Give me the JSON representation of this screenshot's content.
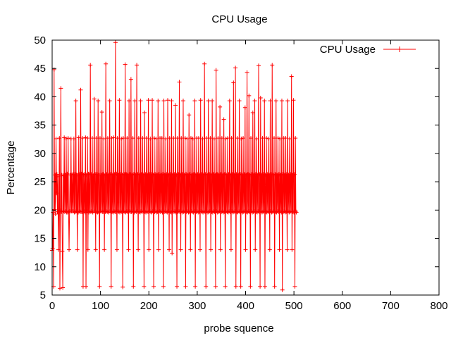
{
  "chart_data": {
    "type": "line",
    "title": "CPU Usage",
    "xlabel": "probe squence",
    "ylabel": "Percentage",
    "xlim": [
      0,
      800
    ],
    "ylim": [
      5,
      50
    ],
    "x_ticks": [
      0,
      100,
      200,
      300,
      400,
      500,
      600,
      700,
      800
    ],
    "y_ticks": [
      5,
      10,
      15,
      20,
      25,
      30,
      35,
      40,
      45,
      50
    ],
    "grid": false,
    "legend_position": "top-right",
    "series": [
      {
        "name": "CPU Usage",
        "color": "#ff0000",
        "x_start": 0,
        "x_step": 1,
        "values": [
          12.9,
          13.2,
          19.6,
          6.5,
          44.8,
          20.1,
          26.2,
          19.3,
          32.6,
          23.0,
          26.3,
          19.7,
          26.0,
          13.0,
          19.7,
          32.7,
          6.2,
          19.9,
          41.5,
          19.7,
          26.2,
          12.7,
          6.3,
          26.1,
          19.8,
          32.8,
          19.7,
          26.2,
          19.8,
          32.6,
          19.6,
          26.4,
          19.6,
          32.7,
          19.7,
          13.0,
          19.8,
          26.2,
          19.8,
          32.6,
          19.8,
          26.2,
          19.8,
          26.3,
          19.8,
          32.6,
          19.6,
          26.3,
          19.7,
          39.3,
          19.8,
          26.2,
          13.0,
          26.2,
          19.6,
          32.8,
          19.8,
          26.3,
          19.7,
          41.2,
          19.7,
          26.4,
          19.7,
          32.7,
          6.5,
          26.2,
          19.8,
          26.3,
          19.6,
          32.8,
          6.5,
          26.2,
          19.8,
          32.7,
          13.0,
          26.4,
          19.6,
          26.3,
          19.8,
          45.6,
          19.7,
          26.3,
          19.8,
          32.7,
          19.6,
          26.1,
          19.8,
          39.6,
          19.8,
          26.3,
          13.0,
          32.7,
          19.7,
          26.3,
          19.6,
          39.3,
          19.7,
          26.2,
          6.5,
          32.7,
          19.8,
          26.2,
          19.8,
          37.3,
          19.7,
          26.3,
          19.7,
          32.6,
          13.0,
          26.1,
          19.7,
          45.8,
          19.8,
          26.3,
          19.7,
          32.7,
          19.6,
          26.2,
          19.8,
          39.3,
          19.8,
          26.3,
          6.5,
          32.7,
          19.7,
          26.2,
          19.6,
          32.8,
          19.8,
          26.3,
          19.7,
          49.6,
          19.7,
          26.4,
          13.0,
          32.7,
          19.8,
          26.2,
          19.7,
          39.4,
          19.6,
          26.3,
          19.8,
          32.6,
          19.7,
          26.2,
          6.4,
          32.7,
          19.8,
          26.3,
          19.7,
          45.7,
          19.6,
          26.3,
          19.8,
          32.7,
          19.7,
          26.2,
          13.0,
          39.3,
          19.8,
          26.3,
          19.7,
          43.1,
          19.7,
          26.2,
          19.8,
          32.7,
          6.5,
          26.3,
          19.6,
          39.3,
          19.8,
          26.2,
          19.7,
          45.6,
          19.8,
          26.3,
          13.0,
          32.7,
          19.7,
          26.2,
          19.6,
          39.3,
          19.8,
          26.3,
          19.7,
          32.7,
          19.8,
          26.2,
          6.5,
          37.2,
          19.7,
          26.3,
          19.6,
          32.7,
          19.8,
          26.2,
          19.7,
          39.4,
          13.0,
          26.3,
          19.8,
          32.6,
          19.7,
          26.3,
          19.6,
          39.4,
          19.8,
          26.2,
          6.5,
          32.7,
          19.7,
          26.3,
          19.8,
          32.6,
          19.6,
          26.2,
          19.7,
          39.3,
          13.0,
          26.3,
          19.8,
          32.7,
          19.7,
          26.2,
          19.8,
          32.7,
          19.6,
          26.3,
          6.5,
          39.3,
          19.7,
          26.2,
          19.8,
          32.6,
          19.7,
          26.3,
          19.6,
          39.4,
          19.8,
          26.2,
          13.0,
          32.7,
          19.7,
          26.3,
          19.6,
          39.3,
          12.4,
          26.2,
          19.8,
          32.7,
          19.7,
          26.3,
          19.8,
          38.5,
          19.6,
          26.2,
          6.5,
          32.7,
          19.7,
          26.3,
          19.8,
          42.6,
          19.7,
          26.2,
          13.0,
          32.7,
          19.8,
          26.3,
          19.6,
          39.3,
          19.7,
          26.2,
          19.8,
          32.7,
          6.5,
          26.3,
          19.7,
          32.6,
          19.8,
          26.2,
          19.6,
          36.8,
          19.7,
          26.3,
          13.0,
          32.7,
          19.8,
          26.2,
          19.7,
          32.6,
          19.6,
          26.3,
          19.8,
          39.3,
          6.5,
          26.2,
          19.7,
          32.7,
          19.8,
          26.3,
          19.6,
          32.7,
          19.7,
          26.2,
          13.0,
          39.4,
          19.8,
          26.3,
          19.7,
          32.6,
          19.6,
          26.2,
          19.8,
          45.8,
          19.7,
          26.3,
          6.5,
          32.7,
          19.8,
          26.2,
          19.6,
          39.3,
          19.7,
          26.3,
          19.8,
          32.7,
          13.0,
          26.2,
          19.7,
          39.3,
          19.6,
          26.3,
          19.8,
          32.6,
          19.7,
          26.2,
          6.5,
          44.7,
          19.8,
          26.3,
          19.6,
          32.7,
          19.7,
          26.2,
          19.8,
          38.2,
          13.0,
          26.3,
          19.7,
          32.7,
          19.8,
          26.2,
          19.6,
          36.0,
          19.7,
          26.3,
          6.5,
          32.6,
          19.8,
          26.2,
          19.7,
          32.7,
          19.6,
          26.3,
          19.8,
          39.3,
          19.7,
          26.2,
          13.0,
          32.7,
          19.8,
          26.3,
          19.6,
          42.5,
          19.7,
          26.2,
          19.8,
          45.1,
          6.5,
          26.3,
          19.7,
          32.7,
          19.6,
          26.2,
          19.8,
          39.3,
          19.7,
          26.3,
          6.5,
          32.6,
          19.8,
          26.2,
          19.6,
          32.7,
          19.7,
          26.3,
          19.8,
          38.1,
          13.0,
          26.2,
          19.7,
          44.3,
          19.6,
          26.3,
          19.8,
          40.2,
          19.7,
          26.2,
          6.5,
          32.7,
          19.8,
          26.3,
          19.6,
          37.2,
          19.7,
          26.2,
          19.8,
          39.3,
          13.0,
          26.3,
          19.7,
          32.6,
          19.6,
          26.2,
          19.8,
          45.5,
          19.7,
          26.3,
          6.5,
          39.8,
          19.8,
          26.2,
          19.6,
          32.7,
          19.7,
          26.3,
          19.8,
          39.3,
          6.5,
          26.2,
          19.7,
          32.7,
          19.6,
          26.3,
          19.8,
          32.6,
          19.7,
          26.2,
          13.0,
          39.3,
          19.8,
          26.3,
          19.6,
          45.6,
          19.7,
          26.2,
          19.8,
          32.7,
          6.5,
          26.3,
          19.7,
          39.3,
          19.6,
          26.2,
          19.8,
          32.7,
          19.7,
          26.3,
          13.0,
          32.6,
          19.8,
          26.2,
          19.6,
          39.3,
          5.9,
          26.3,
          19.7,
          32.7,
          19.8,
          26.2,
          19.6,
          32.7,
          19.7,
          26.3,
          13.0,
          39.3,
          19.8,
          26.2,
          19.6,
          32.6,
          19.7,
          26.3,
          19.8,
          43.6,
          13.0,
          26.2,
          19.7,
          39.4,
          19.6,
          26.3,
          6.5,
          32.7,
          19.8,
          19.6
        ]
      }
    ]
  }
}
